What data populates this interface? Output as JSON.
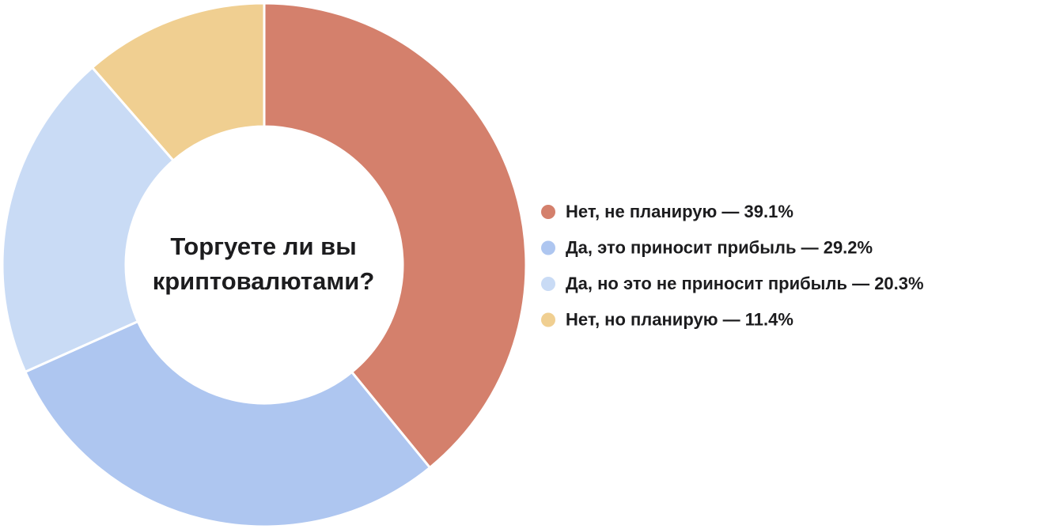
{
  "chart_data": {
    "type": "donut",
    "title": "Торгуете ли вы криптовалютами?",
    "categories": [
      "Нет, не планирую — 39.1%",
      "Да, это приносит прибыль — 29.2%",
      "Да, но это не приносит прибыль — 20.3%",
      "Нет, но планирую — 11.4%"
    ],
    "values": [
      39.1,
      29.2,
      20.3,
      11.4
    ],
    "colors": [
      "#d4806c",
      "#aec6f0",
      "#c9dbf5",
      "#f0cf91"
    ],
    "legend": "right"
  }
}
